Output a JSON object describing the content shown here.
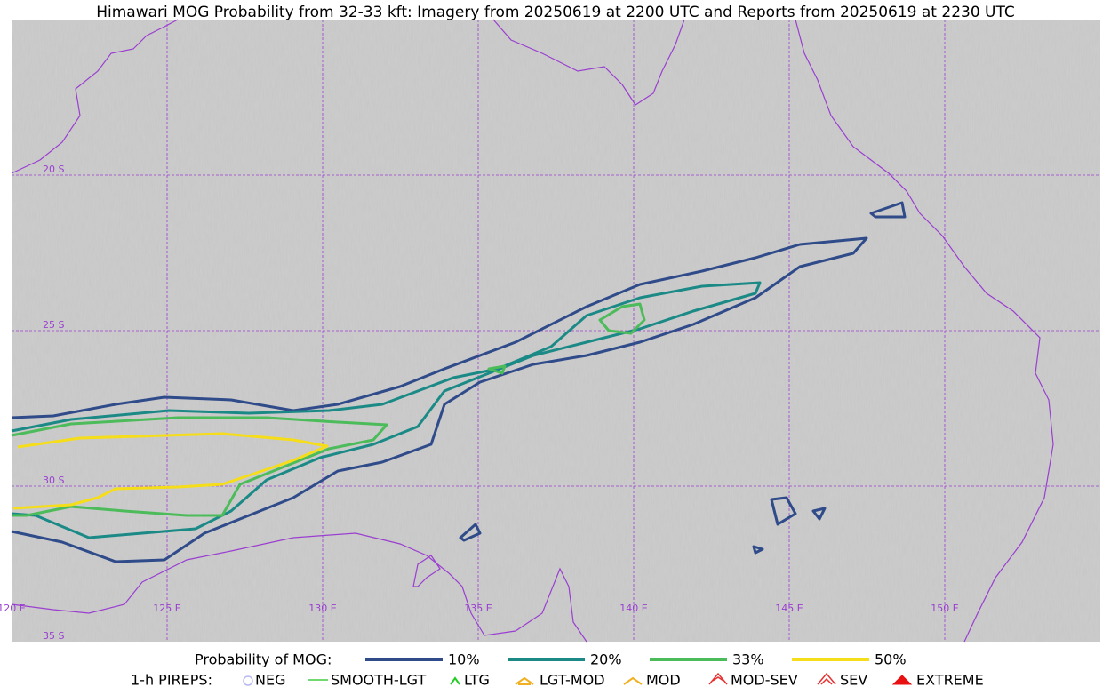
{
  "title": "Himawari MOG Probability from 32-33 kft: Imagery from 20250619 at 2200 UTC and Reports from 20250619 at 2230 UTC",
  "latitude_labels": [
    "20 S",
    "25 S",
    "30 S",
    "35 S"
  ],
  "longitude_labels": [
    "120 E",
    "125 E",
    "130 E",
    "135 E",
    "140 E",
    "145 E",
    "150 E"
  ],
  "legend": {
    "probability_title": "Probability of MOG:",
    "probability_levels": [
      {
        "label": "10%",
        "color": "#2f4b8a"
      },
      {
        "label": "20%",
        "color": "#1b8a86"
      },
      {
        "label": "33%",
        "color": "#4cbb5a"
      },
      {
        "label": "50%",
        "color": "#f5dd1a"
      }
    ],
    "pireps_title": "1-h PIREPS:",
    "pireps": [
      {
        "label": "NEG",
        "color": "#b9b9f0"
      },
      {
        "label": "SMOOTH-LGT",
        "color": "#44cc44"
      },
      {
        "label": "LTG",
        "color": "#22cc22"
      },
      {
        "label": "LGT-MOD",
        "color": "#f0b020"
      },
      {
        "label": "MOD",
        "color": "#f0b020"
      },
      {
        "label": "MOD-SEV",
        "color": "#e83030"
      },
      {
        "label": "SEV",
        "color": "#e83030"
      },
      {
        "label": "EXTREME",
        "color": "#e81010"
      }
    ]
  }
}
